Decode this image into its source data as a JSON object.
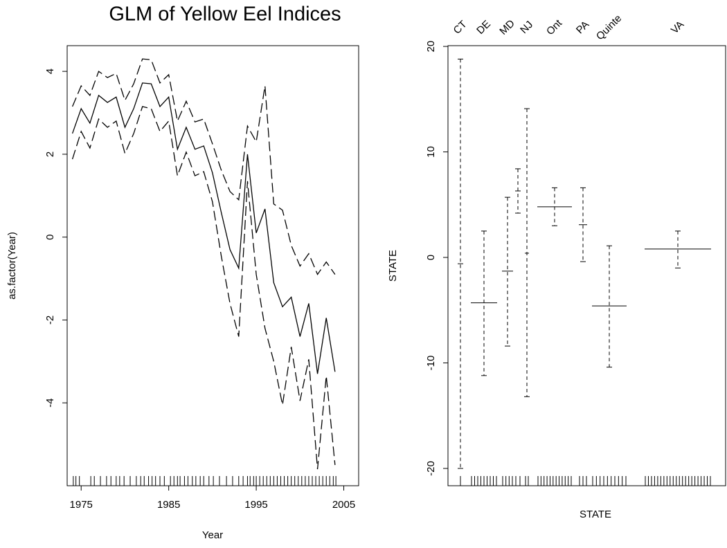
{
  "chart_data": [
    {
      "type": "line",
      "title": "GLM of Yellow Eel Indices",
      "xlabel": "Year",
      "ylabel": "as.factor(Year)",
      "x": [
        1974,
        1975,
        1976,
        1977,
        1978,
        1979,
        1980,
        1981,
        1982,
        1983,
        1984,
        1985,
        1986,
        1987,
        1988,
        1989,
        1990,
        1991,
        1992,
        1993,
        1994,
        1995,
        1996,
        1997,
        1998,
        1999,
        2000,
        2001,
        2002,
        2003,
        2004
      ],
      "series": [
        {
          "color": "#000000",
          "dash": "none",
          "values": [
            2.5,
            3.1,
            2.75,
            3.42,
            3.25,
            3.38,
            2.65,
            3.1,
            3.72,
            3.7,
            3.15,
            3.38,
            2.12,
            2.65,
            2.12,
            2.2,
            1.55,
            0.6,
            -0.3,
            -0.75,
            2.0,
            0.1,
            0.68,
            -1.1,
            -1.68,
            -1.45,
            -2.4,
            -1.6,
            -3.3,
            -1.95,
            -3.25
          ]
        },
        {
          "color": "#000000",
          "dash": "14 6",
          "values": [
            3.15,
            3.65,
            3.42,
            4.0,
            3.85,
            3.95,
            3.3,
            3.7,
            4.3,
            4.28,
            3.72,
            3.92,
            2.8,
            3.28,
            2.78,
            2.85,
            2.25,
            1.62,
            1.1,
            0.9,
            2.68,
            2.3,
            3.65,
            0.8,
            0.65,
            -0.2,
            -0.7,
            -0.4,
            -0.9,
            -0.6,
            -0.9
          ]
        },
        {
          "color": "#000000",
          "dash": "14 6",
          "values": [
            1.88,
            2.55,
            2.15,
            2.85,
            2.65,
            2.8,
            2.02,
            2.5,
            3.15,
            3.1,
            2.55,
            2.8,
            1.48,
            2.05,
            1.48,
            1.58,
            0.85,
            -0.45,
            -1.6,
            -2.4,
            1.35,
            -0.9,
            -2.2,
            -3.0,
            -4.05,
            -2.65,
            -3.95,
            -2.95,
            -5.6,
            -3.35,
            -5.5
          ]
        }
      ],
      "rug": [
        1974.1,
        1974.4,
        1974.8,
        1976.1,
        1976.5,
        1977.2,
        1977.9,
        1978.4,
        1979.0,
        1979.4,
        1979.9,
        1980.6,
        1981.3,
        1981.8,
        1982.2,
        1982.7,
        1983.1,
        1983.5,
        1984.0,
        1984.5,
        1985.2,
        1985.6,
        1986.0,
        1986.3,
        1986.8,
        1987.2,
        1987.7,
        1988.1,
        1988.6,
        1989.0,
        1989.6,
        1990.1,
        1990.8,
        1991.6,
        1992.3,
        1993.0,
        1993.5,
        1994.0,
        1994.3,
        1994.7,
        1995.0,
        1995.4,
        1995.8,
        1996.2,
        1996.6,
        1997.0,
        1997.4,
        1997.8,
        1998.2,
        1998.6,
        1999.0,
        1999.4,
        1999.8,
        2000.2,
        2000.6,
        2001.0,
        2001.4,
        2001.8,
        2002.2,
        2002.6,
        2003.0,
        2003.4,
        2003.8,
        2004.1
      ],
      "xlim": [
        1973.4,
        2006.7
      ],
      "ylim": [
        -6.0,
        4.62
      ],
      "xticks": [
        1975,
        1985,
        1995,
        2005
      ],
      "yticks": [
        -4,
        -2,
        0,
        2,
        4
      ]
    },
    {
      "type": "errorbar",
      "xlabel": "STATE",
      "ylabel": "STATE",
      "categories": [
        "CT",
        "DE",
        "MD",
        null,
        "NJ",
        "Ont",
        "PA",
        "Quinte",
        "VA"
      ],
      "values": [
        -0.6,
        -4.3,
        -1.3,
        6.3,
        0.4,
        4.8,
        3.1,
        -4.6,
        0.8
      ],
      "upper": [
        18.8,
        2.5,
        5.7,
        8.4,
        14.1,
        6.6,
        6.6,
        1.1,
        2.5
      ],
      "lower": [
        -20.0,
        -11.2,
        -8.4,
        4.2,
        -13.2,
        3.0,
        -0.4,
        -10.4,
        -1.0
      ],
      "color": "#000000",
      "ylim": [
        -21.64,
        20.07
      ],
      "yticks": [
        -20,
        -10,
        0,
        10,
        20
      ]
    }
  ]
}
